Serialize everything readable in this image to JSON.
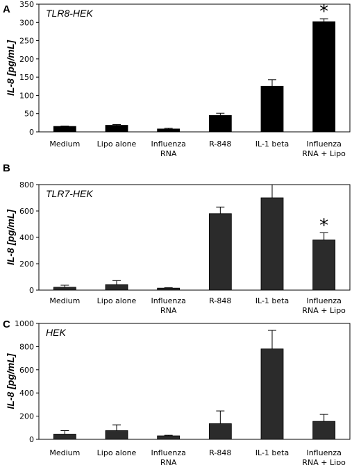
{
  "chart_data": [
    {
      "type": "bar",
      "panel": "A",
      "title": "TLR8-HEK",
      "ylabel": "IL-8 [pg/mL]",
      "categories": [
        [
          "Medium"
        ],
        [
          "Lipo alone"
        ],
        [
          "Influenza",
          "RNA"
        ],
        [
          "R-848"
        ],
        [
          "IL-1 beta"
        ],
        [
          "Influenza",
          "RNA + Lipo"
        ]
      ],
      "values": [
        15,
        18,
        8,
        45,
        125,
        302
      ],
      "errors": [
        1,
        2,
        2,
        6,
        18,
        8
      ],
      "ylim": [
        0,
        350
      ],
      "yticks": [
        0,
        50,
        100,
        150,
        200,
        250,
        300,
        350
      ],
      "annotations": [
        {
          "category_index": 5,
          "text": "*"
        }
      ],
      "bar_color": "#000000"
    },
    {
      "type": "bar",
      "panel": "B",
      "title": "TLR7-HEK",
      "ylabel": "IL-8 [pg/mL]",
      "categories": [
        [
          "Medium"
        ],
        [
          "Lipo alone"
        ],
        [
          "Influenza",
          "RNA"
        ],
        [
          "R-848"
        ],
        [
          "IL-1 beta"
        ],
        [
          "Influenza",
          "RNA + Lipo"
        ]
      ],
      "values": [
        22,
        42,
        15,
        580,
        700,
        380
      ],
      "errors": [
        15,
        30,
        3,
        50,
        100,
        55
      ],
      "ylim": [
        0,
        800
      ],
      "yticks": [
        0,
        200,
        400,
        600,
        800
      ],
      "annotations": [
        {
          "category_index": 5,
          "text": "*"
        }
      ],
      "bar_color": "#2b2b2b"
    },
    {
      "type": "bar",
      "panel": "C",
      "title": "HEK",
      "ylabel": "IL-8 [pg/mL]",
      "categories": [
        [
          "Medium"
        ],
        [
          "Lipo alone"
        ],
        [
          "Influenza",
          "RNA"
        ],
        [
          "R-848"
        ],
        [
          "IL-1 beta"
        ],
        [
          "Influenza",
          "RNA + Lipo"
        ]
      ],
      "values": [
        45,
        75,
        30,
        135,
        780,
        155
      ],
      "errors": [
        30,
        50,
        5,
        110,
        160,
        60
      ],
      "ylim": [
        0,
        1000
      ],
      "yticks": [
        0,
        200,
        400,
        600,
        800,
        1000
      ],
      "annotations": [],
      "bar_color": "#2b2b2b"
    }
  ]
}
